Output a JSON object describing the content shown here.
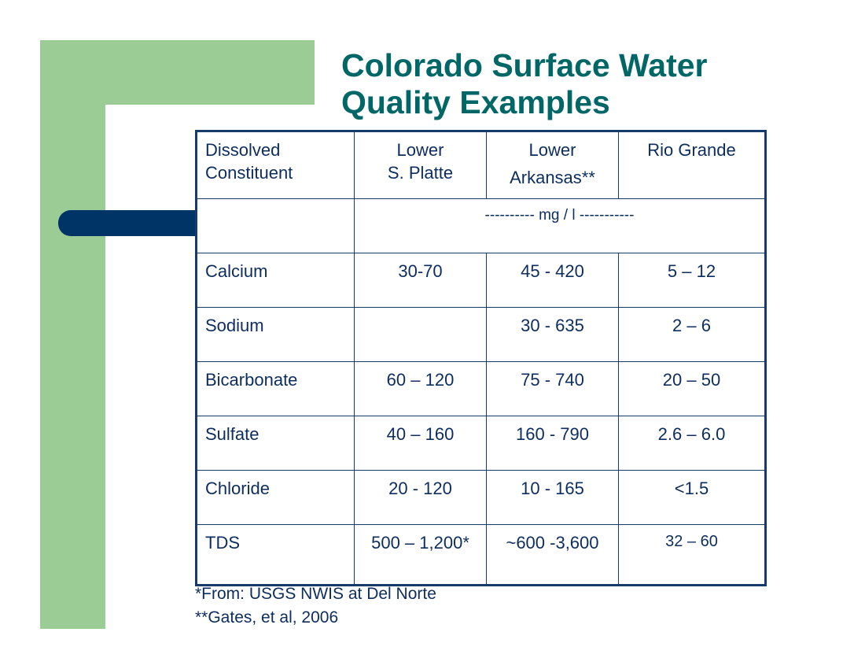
{
  "title": {
    "line1": "Colorado Surface Water",
    "line2": "Quality Examples"
  },
  "table": {
    "headers": [
      {
        "line1": "Dissolved",
        "line2": "Constituent"
      },
      {
        "line1": "Lower",
        "line2": "S. Platte"
      },
      {
        "line1": "Lower",
        "line2": "Arkansas**"
      },
      {
        "line1": "Rio Grande",
        "line2": ""
      }
    ],
    "unit_row": "---------- mg / l -----------",
    "rows": [
      {
        "constituent": "Calcium",
        "s_platte": "30-70",
        "arkansas": "45 - 420",
        "rio_grande": "5 – 12"
      },
      {
        "constituent": "Sodium",
        "s_platte": "",
        "arkansas": "30 - 635",
        "rio_grande": "2 – 6"
      },
      {
        "constituent": "Bicarbonate",
        "s_platte": "60 – 120",
        "arkansas": "75 - 740",
        "rio_grande": "20 – 50"
      },
      {
        "constituent": "Sulfate",
        "s_platte": "40 – 160",
        "arkansas": "160 - 790",
        "rio_grande": "2.6 – 6.0"
      },
      {
        "constituent": "Chloride",
        "s_platte": "20 - 120",
        "arkansas": "10 - 165",
        "rio_grande": "<1.5"
      },
      {
        "constituent": "TDS",
        "s_platte": "500 – 1,200*",
        "arkansas": "~600 -3,600",
        "rio_grande": "32 – 60"
      }
    ]
  },
  "footnotes": [
    "*From:  USGS NWIS at Del Norte",
    "**Gates, et al, 2006"
  ],
  "colors": {
    "title": "#006666",
    "text": "#0c2d5e",
    "green_bar": "#9ccc96",
    "navy_tab": "#003466"
  }
}
